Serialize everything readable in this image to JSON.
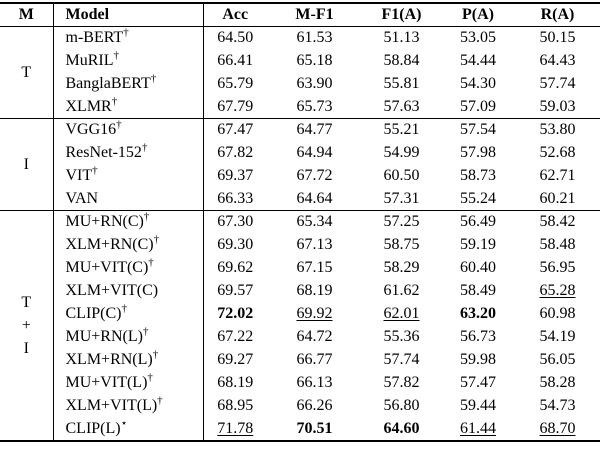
{
  "table": {
    "headers": [
      "M",
      "Model",
      "Acc",
      "M-F1",
      "F1(A)",
      "P(A)",
      "R(A)"
    ],
    "groups": [
      {
        "modality": [
          "T"
        ],
        "rows": [
          {
            "model": "m-BERT",
            "sup": "†",
            "cells": [
              {
                "t": "64.50"
              },
              {
                "t": "61.53"
              },
              {
                "t": "51.13"
              },
              {
                "t": "53.05"
              },
              {
                "t": "50.15"
              }
            ]
          },
          {
            "model": "MuRIL",
            "sup": "†",
            "cells": [
              {
                "t": "66.41"
              },
              {
                "t": "65.18"
              },
              {
                "t": "58.84"
              },
              {
                "t": "54.44"
              },
              {
                "t": "64.43"
              }
            ]
          },
          {
            "model": "BanglaBERT",
            "sup": "†",
            "cells": [
              {
                "t": "65.79"
              },
              {
                "t": "63.90"
              },
              {
                "t": "55.81"
              },
              {
                "t": "54.30"
              },
              {
                "t": "57.74"
              }
            ]
          },
          {
            "model": "XLMR",
            "sup": "†",
            "cells": [
              {
                "t": "67.79"
              },
              {
                "t": "65.73"
              },
              {
                "t": "57.63"
              },
              {
                "t": "57.09"
              },
              {
                "t": "59.03"
              }
            ]
          }
        ]
      },
      {
        "modality": [
          "I"
        ],
        "rows": [
          {
            "model": "VGG16",
            "sup": "†",
            "cells": [
              {
                "t": "67.47"
              },
              {
                "t": "64.77"
              },
              {
                "t": "55.21"
              },
              {
                "t": "57.54"
              },
              {
                "t": "53.80"
              }
            ]
          },
          {
            "model": "ResNet-152",
            "sup": "†",
            "cells": [
              {
                "t": "67.82"
              },
              {
                "t": "64.94"
              },
              {
                "t": "54.99"
              },
              {
                "t": "57.98"
              },
              {
                "t": "52.68"
              }
            ]
          },
          {
            "model": "VIT",
            "sup": "†",
            "cells": [
              {
                "t": "69.37"
              },
              {
                "t": "67.72"
              },
              {
                "t": "60.50"
              },
              {
                "t": "58.73"
              },
              {
                "t": "62.71"
              }
            ]
          },
          {
            "model": "VAN",
            "sup": "",
            "cells": [
              {
                "t": "66.33"
              },
              {
                "t": "64.64"
              },
              {
                "t": "57.31"
              },
              {
                "t": "55.24"
              },
              {
                "t": "60.21"
              }
            ]
          }
        ]
      },
      {
        "modality": [
          "T",
          "+",
          "I"
        ],
        "rows": [
          {
            "model": "MU+RN(C)",
            "sup": "†",
            "cells": [
              {
                "t": "67.30"
              },
              {
                "t": "65.34"
              },
              {
                "t": "57.25"
              },
              {
                "t": "56.49"
              },
              {
                "t": "58.42"
              }
            ]
          },
          {
            "model": "XLM+RN(C)",
            "sup": "†",
            "cells": [
              {
                "t": "69.30"
              },
              {
                "t": "67.13"
              },
              {
                "t": "58.75"
              },
              {
                "t": "59.19"
              },
              {
                "t": "58.48"
              }
            ]
          },
          {
            "model": "MU+VIT(C)",
            "sup": "†",
            "cells": [
              {
                "t": "69.62"
              },
              {
                "t": "67.15"
              },
              {
                "t": "58.29"
              },
              {
                "t": "60.40"
              },
              {
                "t": "56.95"
              }
            ]
          },
          {
            "model": "XLM+VIT(C)",
            "sup": "",
            "cells": [
              {
                "t": "69.57"
              },
              {
                "t": "68.19"
              },
              {
                "t": "61.62"
              },
              {
                "t": "58.49"
              },
              {
                "t": "65.28",
                "s": "u"
              }
            ]
          },
          {
            "model": "CLIP(C)",
            "sup": "†",
            "cells": [
              {
                "t": "72.02",
                "s": "b"
              },
              {
                "t": "69.92",
                "s": "u"
              },
              {
                "t": "62.01",
                "s": "u"
              },
              {
                "t": "63.20",
                "s": "b"
              },
              {
                "t": "60.98"
              }
            ]
          },
          {
            "model": "MU+RN(L)",
            "sup": "†",
            "cells": [
              {
                "t": "67.22"
              },
              {
                "t": "64.72"
              },
              {
                "t": "55.36"
              },
              {
                "t": "56.73"
              },
              {
                "t": "54.19"
              }
            ]
          },
          {
            "model": "XLM+RN(L)",
            "sup": "†",
            "cells": [
              {
                "t": "69.27"
              },
              {
                "t": "66.77"
              },
              {
                "t": "57.74"
              },
              {
                "t": "59.98"
              },
              {
                "t": "56.05"
              }
            ]
          },
          {
            "model": "MU+VIT(L)",
            "sup": "†",
            "cells": [
              {
                "t": "68.19"
              },
              {
                "t": "66.13"
              },
              {
                "t": "57.82"
              },
              {
                "t": "57.47"
              },
              {
                "t": "58.28"
              }
            ]
          },
          {
            "model": "XLM+VIT(L)",
            "sup": "†",
            "cells": [
              {
                "t": "68.95"
              },
              {
                "t": "66.26"
              },
              {
                "t": "56.80"
              },
              {
                "t": "59.44"
              },
              {
                "t": "54.73"
              }
            ]
          },
          {
            "model": "CLIP(L)",
            "sup": "⋆",
            "cells": [
              {
                "t": "71.78",
                "s": "u"
              },
              {
                "t": "70.51",
                "s": "b"
              },
              {
                "t": "64.60",
                "s": "b"
              },
              {
                "t": "61.44",
                "s": "u"
              },
              {
                "t": "68.70",
                "s": "u"
              }
            ]
          }
        ]
      }
    ]
  }
}
